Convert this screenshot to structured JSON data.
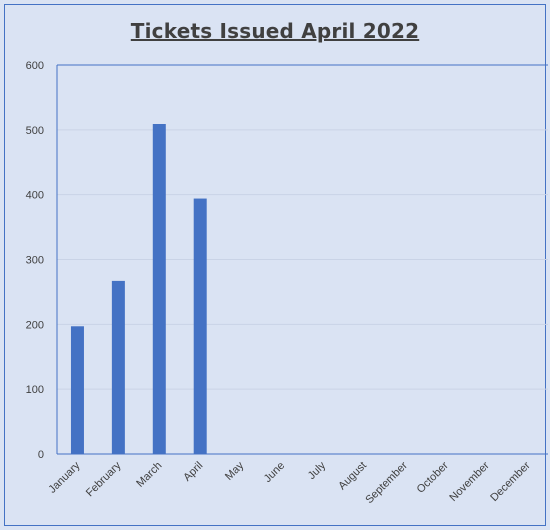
{
  "chart_data": {
    "type": "bar",
    "title": "Tickets Issued April 2022",
    "xlabel": "",
    "ylabel": "",
    "categories": [
      "January",
      "February",
      "March",
      "April",
      "May",
      "June",
      "July",
      "August",
      "September",
      "October",
      "November",
      "December"
    ],
    "values": [
      197,
      267,
      509,
      394,
      null,
      null,
      null,
      null,
      null,
      null,
      null,
      null
    ],
    "ylim": [
      0,
      600
    ],
    "yticks": [
      0,
      100,
      200,
      300,
      400,
      500,
      600
    ],
    "grid": true,
    "legend": "none",
    "colors": {
      "bar": "#4472c4",
      "grid": "#c9d3e6",
      "axis": "#4472c4",
      "background": "#dae3f3"
    }
  }
}
